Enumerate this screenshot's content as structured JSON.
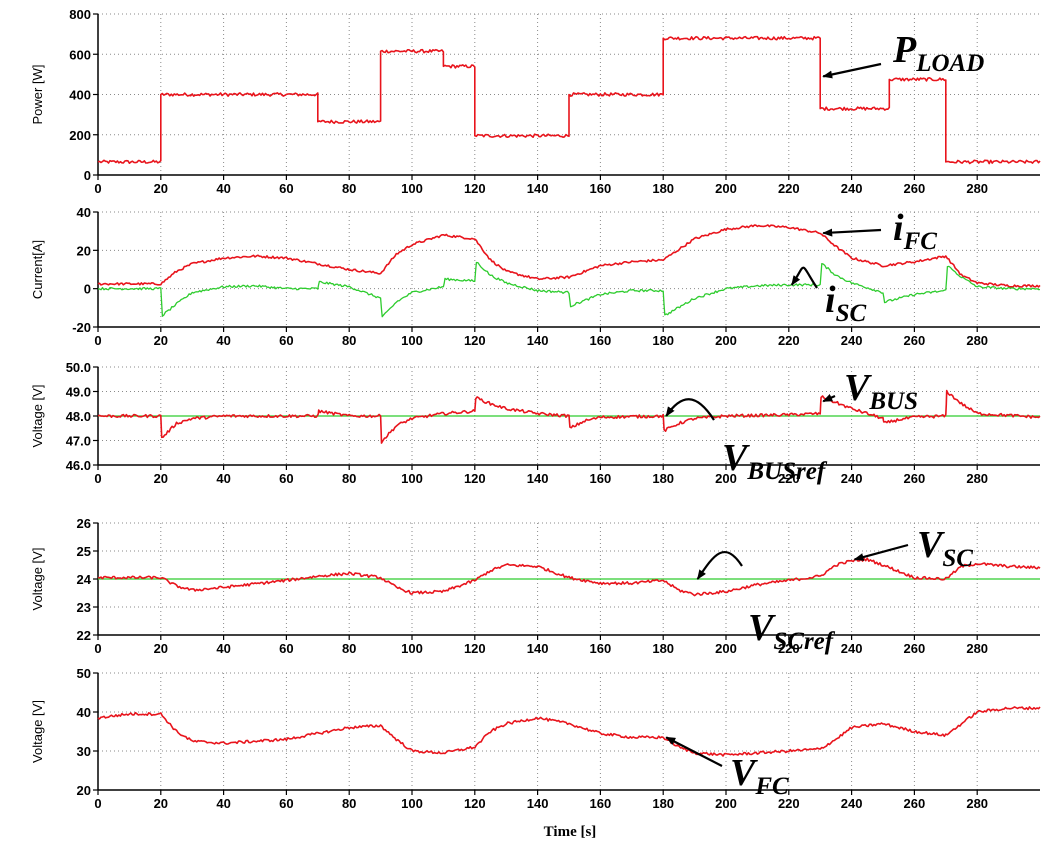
{
  "colors": {
    "red": "#e8141c",
    "green": "#2ecc2e",
    "grid": "#8a8a8a"
  },
  "xlabel": "Time [s]",
  "chart_data": [
    {
      "type": "line",
      "ylabel": "Power [W]",
      "xlim": [
        0,
        300
      ],
      "ylim": [
        0,
        800
      ],
      "yticks": [
        "0",
        "200",
        "400",
        "600",
        "800"
      ],
      "xticks": [
        "0",
        "20",
        "40",
        "60",
        "80",
        "100",
        "120",
        "140",
        "160",
        "180",
        "200",
        "220",
        "240",
        "260",
        "280"
      ],
      "series": [
        {
          "color": "red",
          "noise": 8,
          "x": [
            0,
            20,
            20,
            70,
            70,
            90,
            90,
            110,
            110,
            120,
            120,
            150,
            150,
            180,
            180,
            230,
            230,
            252,
            252,
            270,
            270,
            300
          ],
          "y": [
            65,
            65,
            400,
            400,
            265,
            265,
            615,
            615,
            540,
            540,
            195,
            195,
            400,
            400,
            680,
            680,
            330,
            330,
            475,
            475,
            65,
            65
          ]
        }
      ],
      "annotations": [
        {
          "main": "P",
          "sub": "LOAD",
          "arrow_to": [
            230,
            490
          ]
        }
      ]
    },
    {
      "type": "line",
      "ylabel": "Current[A]",
      "xlim": [
        0,
        300
      ],
      "ylim": [
        -20,
        40
      ],
      "yticks": [
        "-20",
        "0",
        "20",
        "40"
      ],
      "xticks": [
        "0",
        "20",
        "40",
        "60",
        "80",
        "100",
        "120",
        "140",
        "160",
        "180",
        "200",
        "220",
        "240",
        "260",
        "280"
      ],
      "series": [
        {
          "color": "red",
          "noise": 0.6,
          "x": [
            0,
            20,
            25,
            30,
            40,
            50,
            60,
            70,
            80,
            90,
            95,
            100,
            110,
            120,
            125,
            130,
            140,
            150,
            160,
            170,
            180,
            190,
            200,
            210,
            220,
            230,
            235,
            240,
            250,
            260,
            270,
            275,
            280,
            290,
            300
          ],
          "y": [
            2.5,
            2.5,
            9,
            13,
            16,
            17,
            16,
            13,
            10,
            8,
            18,
            23,
            28,
            26,
            15,
            9,
            5,
            6,
            12,
            14,
            15,
            26,
            31,
            33,
            32,
            29,
            22,
            16,
            12,
            14,
            17,
            7,
            3,
            1.5,
            1.5
          ]
        },
        {
          "color": "green",
          "noise": 0.6,
          "x": [
            0,
            20,
            20.5,
            25,
            30,
            40,
            50,
            60,
            70,
            70.5,
            80,
            90,
            90.5,
            95,
            100,
            110,
            110.5,
            120,
            120.5,
            125,
            130,
            140,
            150,
            150.5,
            160,
            170,
            180,
            180.5,
            190,
            200,
            210,
            220,
            230,
            230.5,
            235,
            240,
            250,
            250.5,
            260,
            270,
            270.5,
            275,
            280,
            290,
            300
          ],
          "y": [
            0,
            0,
            -14,
            -8,
            -2,
            1,
            1.5,
            0,
            0,
            3.5,
            1,
            -5,
            -15,
            -7,
            -2,
            1,
            5,
            4,
            14,
            7,
            3,
            -1,
            -2,
            -9,
            -3,
            -1,
            -1,
            -14,
            -5,
            0,
            1.5,
            2,
            2,
            13,
            7,
            3,
            -2,
            -7,
            -3,
            -1,
            12,
            6,
            1,
            0,
            0
          ]
        }
      ],
      "annotations": [
        {
          "main": "i",
          "sub": "FC",
          "arrow_to": [
            230,
            29
          ]
        },
        {
          "main": "i",
          "sub": "SC",
          "arrow_to": [
            220,
            2
          ]
        }
      ]
    },
    {
      "type": "line",
      "ylabel": "Voltage [V]",
      "xlim": [
        0,
        300
      ],
      "ylim": [
        46,
        50
      ],
      "yticks": [
        "46.0",
        "47.0",
        "48.0",
        "49.0",
        "50.0"
      ],
      "xticks": [
        "0",
        "20",
        "40",
        "60",
        "80",
        "100",
        "120",
        "140",
        "160",
        "180",
        "200",
        "220",
        "240",
        "260",
        "280"
      ],
      "series": [
        {
          "color": "green",
          "noise": 0,
          "x": [
            0,
            300
          ],
          "y": [
            48,
            48
          ]
        },
        {
          "color": "red",
          "noise": 0.06,
          "x": [
            0,
            20,
            20.3,
            25,
            30,
            40,
            60,
            70,
            70.3,
            75,
            80,
            90,
            90.3,
            95,
            100,
            110,
            120,
            120.3,
            125,
            130,
            140,
            150,
            150.3,
            155,
            160,
            180,
            180.3,
            185,
            190,
            200,
            220,
            230,
            230.3,
            235,
            240,
            250,
            250.3,
            255,
            260,
            270,
            270.3,
            275,
            280,
            300
          ],
          "y": [
            48,
            48,
            47.1,
            47.7,
            47.9,
            48,
            48,
            48,
            48.2,
            48.1,
            48,
            48,
            46.95,
            47.6,
            47.9,
            48.1,
            48.2,
            48.75,
            48.5,
            48.3,
            48.1,
            48,
            47.5,
            47.8,
            47.95,
            48,
            47.4,
            47.7,
            47.9,
            48,
            48.05,
            48.1,
            48.8,
            48.55,
            48.3,
            47.9,
            47.7,
            47.85,
            47.95,
            48,
            49,
            48.5,
            48.1,
            47.95
          ]
        }
      ],
      "annotations": [
        {
          "main": "V",
          "sub": "BUS",
          "arrow_to": [
            230,
            48.6
          ]
        },
        {
          "main": "V",
          "sub": "BUSref",
          "arrow_to": [
            180,
            48
          ]
        }
      ]
    },
    {
      "type": "line",
      "ylabel": "Voltage [V]",
      "xlim": [
        0,
        300
      ],
      "ylim": [
        22,
        26
      ],
      "yticks": [
        "22",
        "23",
        "24",
        "25",
        "26"
      ],
      "xticks": [
        "0",
        "20",
        "40",
        "60",
        "80",
        "100",
        "120",
        "140",
        "160",
        "180",
        "200",
        "220",
        "240",
        "260",
        "280"
      ],
      "series": [
        {
          "color": "green",
          "noise": 0,
          "x": [
            0,
            300
          ],
          "y": [
            24,
            24
          ]
        },
        {
          "color": "red",
          "noise": 0.05,
          "x": [
            0,
            20,
            25,
            30,
            40,
            60,
            70,
            80,
            90,
            95,
            100,
            110,
            120,
            125,
            130,
            140,
            150,
            160,
            170,
            180,
            185,
            190,
            200,
            210,
            220,
            230,
            235,
            240,
            245,
            250,
            260,
            270,
            275,
            280,
            290,
            300
          ],
          "y": [
            24.05,
            24.05,
            23.75,
            23.6,
            23.7,
            23.95,
            24.1,
            24.2,
            24.05,
            23.7,
            23.5,
            23.55,
            23.95,
            24.3,
            24.5,
            24.45,
            24.05,
            23.85,
            23.85,
            23.95,
            23.6,
            23.45,
            23.55,
            23.8,
            23.95,
            24.1,
            24.5,
            24.65,
            24.7,
            24.5,
            24.05,
            24,
            24.45,
            24.55,
            24.45,
            24.4
          ]
        }
      ],
      "annotations": [
        {
          "main": "V",
          "sub": "SC",
          "arrow_to": [
            240,
            24.7
          ]
        },
        {
          "main": "V",
          "sub": "SCref",
          "arrow_to": [
            190,
            24
          ]
        }
      ]
    },
    {
      "type": "line",
      "ylabel": "Voltage [V]",
      "xlim": [
        0,
        300
      ],
      "ylim": [
        20,
        50
      ],
      "yticks": [
        "20",
        "30",
        "40",
        "50"
      ],
      "xticks": [
        "0",
        "20",
        "40",
        "60",
        "80",
        "100",
        "120",
        "140",
        "160",
        "180",
        "200",
        "220",
        "240",
        "260",
        "280"
      ],
      "series": [
        {
          "color": "red",
          "noise": 0.35,
          "x": [
            0,
            10,
            20,
            25,
            30,
            40,
            60,
            70,
            80,
            90,
            95,
            100,
            110,
            120,
            125,
            130,
            140,
            150,
            160,
            170,
            180,
            185,
            190,
            200,
            210,
            220,
            230,
            235,
            240,
            250,
            260,
            270,
            275,
            280,
            290,
            300
          ],
          "y": [
            38.5,
            39.5,
            39.5,
            35,
            32.5,
            32,
            33,
            34.5,
            36,
            36.5,
            33,
            30,
            29.5,
            31,
            35,
            37,
            38.5,
            37,
            34.5,
            33.5,
            33.5,
            31,
            29.5,
            29,
            29.5,
            30,
            30.5,
            33,
            36,
            37,
            35,
            34,
            37,
            40,
            41,
            41
          ]
        }
      ],
      "annotations": [
        {
          "main": "V",
          "sub": "FC",
          "arrow_to": [
            180,
            33.5
          ]
        }
      ]
    }
  ]
}
